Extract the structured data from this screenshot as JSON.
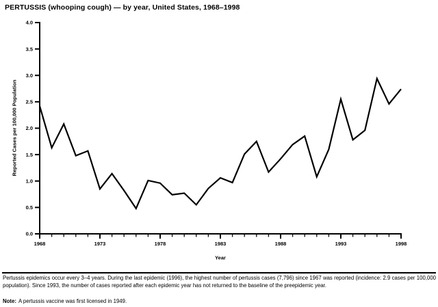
{
  "title": "PERTUSSIS (whooping cough) — by year, United States, 1968–1998",
  "chart_data": {
    "type": "line",
    "title": "PERTUSSIS (whooping cough) — by year, United States, 1968–1998",
    "xlabel": "Year",
    "ylabel": "Reported Cases per 100,000 Population",
    "xlim": [
      1968,
      1998
    ],
    "ylim": [
      0.0,
      4.0
    ],
    "grid": false,
    "legend": "none",
    "line_color": "#000000",
    "y_ticks": [
      0.0,
      0.5,
      1.0,
      1.5,
      2.0,
      2.5,
      3.0,
      3.5,
      4.0
    ],
    "x_major_ticks": [
      1968,
      1973,
      1978,
      1983,
      1988,
      1993,
      1998
    ],
    "x": [
      1968,
      1969,
      1970,
      1971,
      1972,
      1973,
      1974,
      1975,
      1976,
      1977,
      1978,
      1979,
      1980,
      1981,
      1982,
      1983,
      1984,
      1985,
      1986,
      1987,
      1988,
      1989,
      1990,
      1991,
      1992,
      1993,
      1994,
      1995,
      1996,
      1997,
      1998
    ],
    "values": [
      2.42,
      1.63,
      2.08,
      1.48,
      1.57,
      0.85,
      1.14,
      0.82,
      0.48,
      1.01,
      0.96,
      0.74,
      0.77,
      0.55,
      0.86,
      1.06,
      0.97,
      1.51,
      1.75,
      1.17,
      1.42,
      1.69,
      1.85,
      1.08,
      1.6,
      2.55,
      1.78,
      1.96,
      2.94,
      2.46,
      2.74
    ]
  },
  "footnote": {
    "paragraph": "Pertussis epidemics occur every 3–4 years. During the last epidemic (1996), the highest number of pertussis cases (7,796) since 1967 was reported (incidence: 2.9 cases per 100,000 population). Since 1993, the number of cases reported after each epidemic year has not returned to the baseline of the preepidemic year.",
    "note_label": "Note:",
    "note_text": "A pertussis vaccine was first licensed in 1949."
  }
}
